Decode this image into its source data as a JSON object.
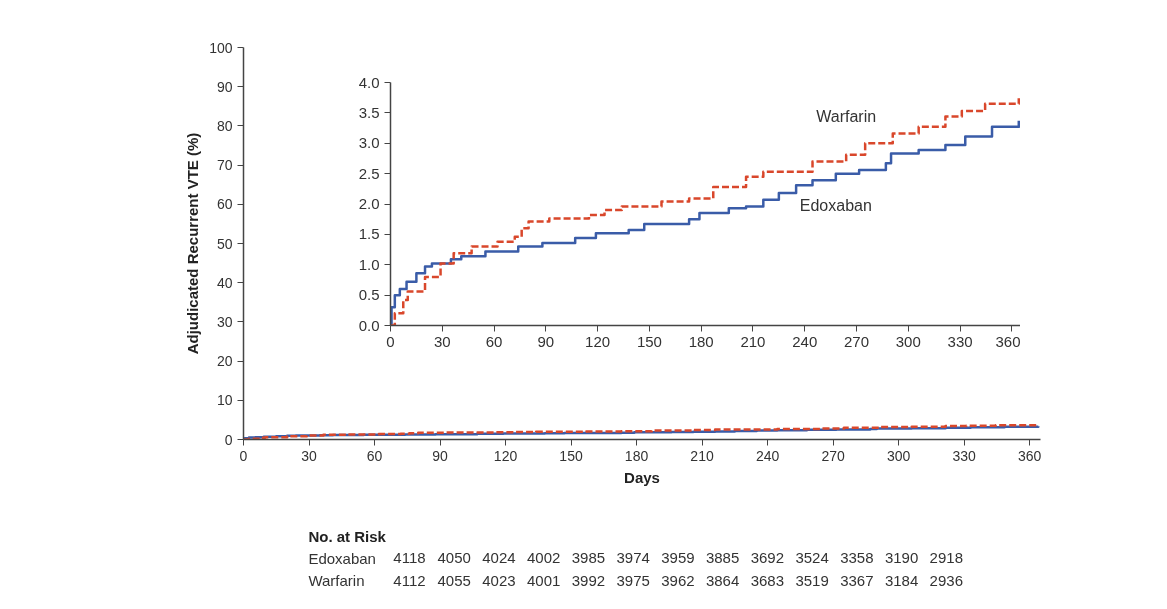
{
  "chart_data": [
    {
      "type": "step",
      "xlabel": "Days",
      "ylabel": "Adjudicated Recurrent VTE (%)",
      "xlim": [
        0,
        365
      ],
      "ylim": [
        0,
        100
      ],
      "xticks": [
        0,
        30,
        60,
        90,
        120,
        150,
        180,
        210,
        240,
        270,
        300,
        330,
        360
      ],
      "yticks": [
        0,
        10,
        20,
        30,
        40,
        50,
        60,
        70,
        80,
        90,
        100
      ],
      "grid": false,
      "legend": false,
      "marker": "none",
      "series": [
        {
          "color": "#3a5ca8",
          "line_style": "solid",
          "x": [
            0,
            0.6,
            2.5,
            5.4,
            9.3,
            15,
            20,
            24,
            35,
            41,
            55,
            74,
            88,
            107,
            119,
            138,
            147,
            167,
            173,
            179,
            196,
            206,
            216,
            225,
            235,
            244.5,
            258,
            271.5,
            287,
            290,
            306,
            321.5,
            333,
            348.5,
            364
          ],
          "values": [
            0,
            0.3,
            0.5,
            0.6,
            0.72,
            0.86,
            0.97,
            1.02,
            1.09,
            1.14,
            1.22,
            1.3,
            1.36,
            1.44,
            1.52,
            1.57,
            1.67,
            1.67,
            1.75,
            1.85,
            1.93,
            1.96,
            2.07,
            2.18,
            2.31,
            2.39,
            2.5,
            2.56,
            2.67,
            2.83,
            2.89,
            2.97,
            3.11,
            3.27,
            3.37
          ]
        },
        {
          "color": "#d9472b",
          "line_style": "dashed",
          "x": [
            0,
            0.6,
            2.5,
            7.4,
            10,
            20,
            29,
            36.6,
            47,
            62,
            72,
            76,
            80,
            92,
            115,
            124,
            134,
            157,
            173,
            187,
            206,
            216,
            244.5,
            264,
            275,
            291,
            306,
            321.5,
            331,
            344.5,
            364
          ],
          "values": [
            0,
            0,
            0.2,
            0.42,
            0.56,
            0.8,
            1.02,
            1.19,
            1.3,
            1.38,
            1.46,
            1.6,
            1.71,
            1.76,
            1.82,
            1.9,
            1.96,
            2.04,
            2.09,
            2.28,
            2.45,
            2.53,
            2.7,
            2.81,
            3.0,
            3.16,
            3.27,
            3.44,
            3.53,
            3.65,
            3.74
          ]
        }
      ],
      "annotations": [
        "No. at Risk",
        "Edoxaban 4118 4050 4024 4002 3985 3974 3959 3885 3692 3524 3358 3190 2918",
        "Warfarin 4112 4055 4023 4001 3992 3975 3962 3864 3683 3519 3367 3184 2936"
      ]
    },
    {
      "type": "step",
      "xlim": [
        0,
        365
      ],
      "ylim": [
        0,
        4
      ],
      "xticks": [
        0,
        30,
        60,
        90,
        120,
        150,
        180,
        210,
        240,
        270,
        300,
        330,
        360
      ],
      "yticks": [
        {
          "value": 0,
          "label": "0.0"
        },
        0.5,
        {
          "value": 1,
          "label": "1.0"
        },
        1.5,
        {
          "value": 2,
          "label": "2.0"
        },
        2.5,
        {
          "value": 3,
          "label": "3.0"
        },
        3.5,
        {
          "value": 4,
          "label": "4.0"
        }
      ],
      "grid": false,
      "legend": false,
      "marker": "none",
      "series": [
        {
          "name": "Edoxaban",
          "color": "#3a5ca8",
          "line_style": "solid",
          "x": [
            0,
            0.6,
            2.5,
            5.4,
            9.3,
            15,
            20,
            24,
            35,
            41,
            55,
            74,
            88,
            107,
            119,
            138,
            147,
            167,
            173,
            179,
            196,
            206,
            216,
            225,
            235,
            244.5,
            258,
            271.5,
            287,
            290,
            306,
            321.5,
            333,
            348.5,
            364
          ],
          "values": [
            0,
            0.3,
            0.5,
            0.6,
            0.72,
            0.86,
            0.97,
            1.02,
            1.09,
            1.14,
            1.22,
            1.3,
            1.36,
            1.44,
            1.52,
            1.57,
            1.67,
            1.67,
            1.75,
            1.85,
            1.93,
            1.96,
            2.07,
            2.18,
            2.31,
            2.39,
            2.5,
            2.56,
            2.67,
            2.83,
            2.89,
            2.97,
            3.11,
            3.27,
            3.37
          ]
        },
        {
          "name": "Warfarin",
          "color": "#d9472b",
          "line_style": "dashed",
          "x": [
            0,
            0.6,
            2.5,
            7.4,
            10,
            20,
            29,
            36.6,
            47,
            62,
            72,
            76,
            80,
            92,
            115,
            124,
            134,
            157,
            173,
            187,
            206,
            216,
            244.5,
            264,
            275,
            291,
            306,
            321.5,
            331,
            344.5,
            364
          ],
          "values": [
            0,
            0,
            0.2,
            0.42,
            0.56,
            0.8,
            1.02,
            1.19,
            1.3,
            1.38,
            1.46,
            1.6,
            1.71,
            1.76,
            1.82,
            1.9,
            1.96,
            2.04,
            2.09,
            2.28,
            2.45,
            2.53,
            2.7,
            2.81,
            3.0,
            3.16,
            3.27,
            3.44,
            3.53,
            3.65,
            3.74
          ]
        }
      ]
    }
  ]
}
